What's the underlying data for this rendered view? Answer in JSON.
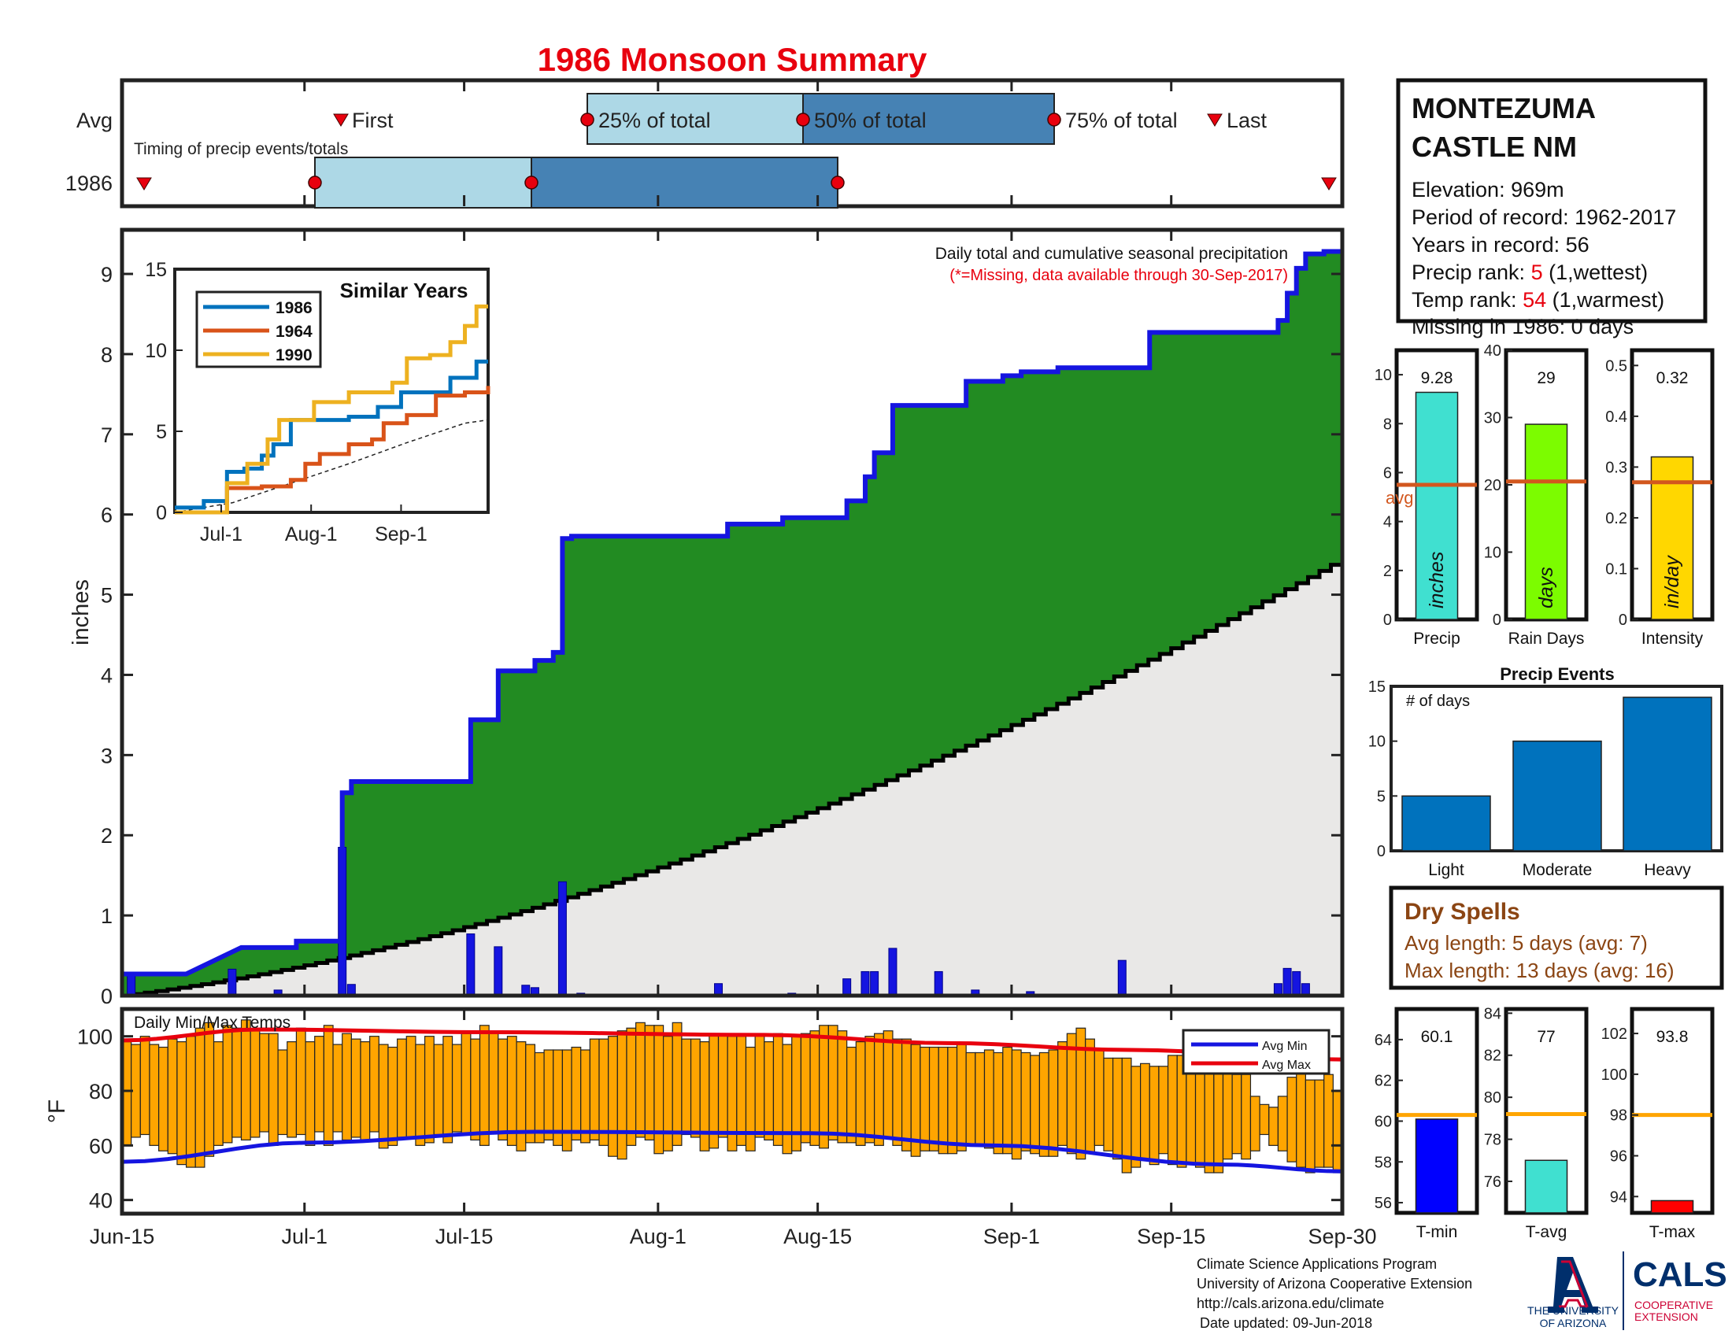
{
  "title": "1986 Monsoon Summary",
  "timing": {
    "avg_label": "Avg",
    "year_label": "1986",
    "caption": "Timing of precip events/totals",
    "first_label": "First",
    "p25_label": "25% of total",
    "p50_label": "50% of total",
    "p75_label": "75% of total",
    "last_label": "Last",
    "avg_dates": {
      "first": "Jul-7",
      "p25": "Jul-26",
      "p50": "Aug-13",
      "p75": "Sep-4",
      "last": "Sep-18"
    },
    "year_dates": {
      "first": "Jun-16",
      "p25": "Jul-2",
      "p50": "Jul-20",
      "p75": "Aug-16",
      "last": "Sep-30"
    }
  },
  "main": {
    "ylabel": "inches",
    "caption": "Daily total and cumulative seasonal precipitation",
    "missing_note": "(*=Missing, data available through 30-Sep-2017)",
    "x_ticks": [
      "Jun-15",
      "Jul-1",
      "Jul-15",
      "Aug-1",
      "Aug-15",
      "Sep-1",
      "Sep-15",
      "Sep-30"
    ],
    "y_ticks": [
      "0",
      "1",
      "2",
      "3",
      "4",
      "5",
      "6",
      "7",
      "8",
      "9"
    ]
  },
  "inset": {
    "title": "Similar Years",
    "legend": [
      "1986",
      "1964",
      "1990"
    ],
    "x_ticks": [
      "Jul-1",
      "Aug-1",
      "Sep-1"
    ],
    "y_ticks": [
      "0",
      "5",
      "10",
      "15"
    ]
  },
  "temps": {
    "caption": "Daily Min/Max Temps",
    "ylabel": "°F",
    "legend_min": "Avg Min",
    "legend_max": "Avg Max",
    "y_ticks": [
      "40",
      "60",
      "80",
      "100"
    ]
  },
  "station": {
    "name_line1": "MONTEZUMA",
    "name_line2": "CASTLE NM",
    "elevation": "Elevation: 969m",
    "period": "Period of record: 1962-2017",
    "years": "Years in record: 56",
    "precip_rank_label": "Precip rank: ",
    "precip_rank": "5",
    "precip_rank_suffix": " (1,wettest)",
    "temp_rank_label": "Temp rank: ",
    "temp_rank": "54",
    "temp_rank_suffix": " (1,warmest)",
    "missing": "Missing in 1986: 0 days"
  },
  "stats": {
    "precip": {
      "value_label": "9.28",
      "value": 9.28,
      "avg": 5.5,
      "unit": "inches",
      "label": "Precip",
      "avg_text": "avg",
      "ticks": [
        "0",
        "2",
        "4",
        "6",
        "8",
        "10"
      ],
      "max": 11
    },
    "raindays": {
      "value_label": "29",
      "value": 29,
      "avg": 20.5,
      "unit": "days",
      "label": "Rain Days",
      "ticks": [
        "0",
        "10",
        "20",
        "30",
        "40"
      ],
      "max": 40
    },
    "intensity": {
      "value_label": "0.32",
      "value": 0.32,
      "avg": 0.27,
      "unit": "in/day",
      "label": "Intensity",
      "ticks": [
        "0",
        "0.1",
        "0.2",
        "0.3",
        "0.4",
        "0.5"
      ],
      "max": 0.53
    }
  },
  "events": {
    "title": "Precip Events",
    "ylabel": "# of days",
    "categories": [
      "Light",
      "Moderate",
      "Heavy"
    ],
    "values": [
      5,
      10,
      14
    ],
    "y_ticks": [
      "0",
      "5",
      "10",
      "15"
    ]
  },
  "dry": {
    "title": "Dry Spells",
    "avg_line": "Avg length: 5 days (avg: 7)",
    "max_line": "Max length: 13 days (avg: 16)"
  },
  "tstats": {
    "tmin": {
      "value_label": "60.1",
      "value": 60.1,
      "avg": 60.3,
      "label": "T-min",
      "ticks": [
        "56",
        "58",
        "60",
        "62",
        "64"
      ],
      "min": 55.5,
      "max": 65.5
    },
    "tavg": {
      "value_label": "77",
      "value": 77,
      "avg": 79.2,
      "label": "T-avg",
      "ticks": [
        "76",
        "78",
        "80",
        "82",
        "84"
      ],
      "min": 74.5,
      "max": 84.2
    },
    "tmax": {
      "value_label": "93.8",
      "value": 93.8,
      "avg": 98,
      "label": "T-max",
      "ticks": [
        "94",
        "96",
        "98",
        "100",
        "102"
      ],
      "min": 93.2,
      "max": 103.2
    }
  },
  "footer": {
    "line1": "Climate Science Applications Program",
    "line2": "University of Arizona Cooperative Extension",
    "line3": "http://cals.arizona.edu/climate",
    "line4": "Date updated: 09-Jun-2018",
    "ua1": "THE UNIVERSITY",
    "ua2": "OF ARIZONA",
    "cals": "CALS",
    "cals1": "COOPERATIVE",
    "cals2": "EXTENSION"
  },
  "colors": {
    "green": "#228b22",
    "blue_line": "#1515e0",
    "light_blue": "#add8e6",
    "steel_blue": "#4682b4",
    "orange": "#ffa500",
    "red": "#e8000e",
    "avg_line": "#d2571e"
  },
  "chart_data": [
    {
      "type": "area",
      "title": "Daily total and cumulative seasonal precipitation",
      "ylabel": "inches",
      "ylim": [
        0,
        9.55
      ],
      "x_range": [
        "Jun-15",
        "Sep-30"
      ],
      "cumulative_1986": [
        [
          0,
          0.27
        ],
        [
          7,
          0.27
        ],
        [
          13,
          0.6
        ],
        [
          19,
          0.6
        ],
        [
          19,
          0.68
        ],
        [
          24,
          0.68
        ],
        [
          24,
          2.53
        ],
        [
          25,
          2.53
        ],
        [
          25,
          2.67
        ],
        [
          38,
          2.67
        ],
        [
          38,
          3.44
        ],
        [
          41,
          3.44
        ],
        [
          41,
          4.05
        ],
        [
          45,
          4.05
        ],
        [
          45,
          4.18
        ],
        [
          47,
          4.18
        ],
        [
          47,
          4.28
        ],
        [
          48,
          4.28
        ],
        [
          48,
          5.7
        ],
        [
          49,
          5.7
        ],
        [
          49,
          5.73
        ],
        [
          66,
          5.73
        ],
        [
          66,
          5.88
        ],
        [
          72,
          5.88
        ],
        [
          72,
          5.96
        ],
        [
          79,
          5.96
        ],
        [
          79,
          6.17
        ],
        [
          81,
          6.17
        ],
        [
          81,
          6.47
        ],
        [
          82,
          6.47
        ],
        [
          82,
          6.77
        ],
        [
          84,
          6.77
        ],
        [
          84,
          7.36
        ],
        [
          92,
          7.36
        ],
        [
          92,
          7.66
        ],
        [
          96,
          7.66
        ],
        [
          96,
          7.73
        ],
        [
          98,
          7.73
        ],
        [
          98,
          7.78
        ],
        [
          102,
          7.78
        ],
        [
          102,
          7.83
        ],
        [
          112,
          7.83
        ],
        [
          112,
          8.27
        ],
        [
          126,
          8.27
        ],
        [
          126,
          8.42
        ],
        [
          127,
          8.42
        ],
        [
          127,
          8.76
        ],
        [
          128,
          8.76
        ],
        [
          128,
          9.07
        ],
        [
          129,
          9.07
        ],
        [
          129,
          9.25
        ],
        [
          131,
          9.25
        ],
        [
          131,
          9.28
        ],
        [
          133,
          9.28
        ]
      ],
      "cumulative_average_end": 5.45,
      "daily_precip": [
        [
          1,
          0.27
        ],
        [
          12,
          0.33
        ],
        [
          17,
          0.07
        ],
        [
          24,
          1.85
        ],
        [
          25,
          0.14
        ],
        [
          38,
          0.77
        ],
        [
          41,
          0.61
        ],
        [
          44,
          0.13
        ],
        [
          45,
          0.1
        ],
        [
          48,
          1.42
        ],
        [
          50,
          0.03
        ],
        [
          65,
          0.15
        ],
        [
          73,
          0.03
        ],
        [
          79,
          0.21
        ],
        [
          81,
          0.3
        ],
        [
          82,
          0.3
        ],
        [
          84,
          0.59
        ],
        [
          89,
          0.3
        ],
        [
          93,
          0.07
        ],
        [
          97,
          0.02
        ],
        [
          99,
          0.05
        ],
        [
          109,
          0.44
        ],
        [
          126,
          0.15
        ],
        [
          127,
          0.34
        ],
        [
          128,
          0.3
        ],
        [
          129,
          0.15
        ]
      ]
    },
    {
      "type": "line",
      "title": "Similar Years",
      "x_ticks": [
        "Jul-1",
        "Aug-1",
        "Sep-1"
      ],
      "ylim": [
        0,
        15
      ],
      "series": [
        {
          "name": "1986",
          "values": [
            [
              0,
              0.3
            ],
            [
              10,
              0.7
            ],
            [
              18,
              2.5
            ],
            [
              24,
              2.7
            ],
            [
              30,
              3.5
            ],
            [
              34,
              4.2
            ],
            [
              40,
              5.7
            ],
            [
              60,
              5.9
            ],
            [
              70,
              6.5
            ],
            [
              78,
              7.4
            ],
            [
              95,
              8.3
            ],
            [
              104,
              9.3
            ],
            [
              108,
              9.3
            ]
          ]
        },
        {
          "name": "1964",
          "values": [
            [
              0,
              0
            ],
            [
              15,
              0
            ],
            [
              18,
              1.5
            ],
            [
              30,
              1.6
            ],
            [
              40,
              2.0
            ],
            [
              45,
              3.0
            ],
            [
              50,
              3.6
            ],
            [
              60,
              4.2
            ],
            [
              68,
              4.5
            ],
            [
              72,
              5.5
            ],
            [
              80,
              6.0
            ],
            [
              90,
              7.2
            ],
            [
              100,
              7.4
            ],
            [
              108,
              7.8
            ]
          ]
        },
        {
          "name": "1990",
          "values": [
            [
              0,
              0
            ],
            [
              15,
              0
            ],
            [
              18,
              1.8
            ],
            [
              25,
              3.0
            ],
            [
              32,
              4.5
            ],
            [
              36,
              5.7
            ],
            [
              48,
              6.8
            ],
            [
              60,
              7.4
            ],
            [
              75,
              8.0
            ],
            [
              80,
              9.5
            ],
            [
              88,
              9.7
            ],
            [
              95,
              10.5
            ],
            [
              100,
              11.5
            ],
            [
              104,
              12.7
            ],
            [
              108,
              12.7
            ]
          ]
        }
      ],
      "average": {
        "values": [
          [
            0,
            0
          ],
          [
            20,
            0.6
          ],
          [
            40,
            1.8
          ],
          [
            60,
            3.0
          ],
          [
            80,
            4.3
          ],
          [
            100,
            5.5
          ],
          [
            108,
            5.7
          ]
        ]
      }
    },
    {
      "type": "bar",
      "title": "Daily Min/Max Temps",
      "ylabel": "°F",
      "ylim": [
        35,
        110
      ],
      "tmax_daily": [
        98,
        97,
        100,
        97,
        96,
        99,
        98,
        100,
        103,
        105,
        98,
        104,
        103,
        106,
        102,
        101,
        101,
        95,
        98,
        103,
        98,
        100,
        104,
        97,
        101,
        99,
        98,
        100,
        97,
        96,
        99,
        100,
        97,
        100,
        97,
        100,
        97,
        101,
        99,
        104,
        101,
        99,
        100,
        98,
        97,
        94,
        95,
        95,
        95,
        96,
        95,
        99,
        99,
        100,
        102,
        103,
        105,
        104,
        104,
        100,
        105,
        99,
        99,
        98,
        101,
        101,
        100,
        100,
        96,
        101,
        98,
        101,
        97,
        100,
        101,
        102,
        104,
        104,
        102,
        96,
        98,
        100,
        101,
        102,
        99,
        99,
        97,
        96,
        96,
        96,
        96,
        97,
        94,
        94,
        95,
        94,
        96,
        95,
        94,
        93,
        94,
        95,
        98,
        101,
        103,
        99,
        95,
        92,
        92,
        92,
        89,
        90,
        89,
        89,
        93,
        93,
        88,
        89,
        90,
        88,
        89,
        86,
        86,
        78,
        75,
        74,
        78,
        85,
        88,
        84,
        84,
        86,
        80
      ],
      "tmin_daily": [
        60,
        63,
        64,
        60,
        58,
        57,
        53,
        52,
        52,
        56,
        60,
        61,
        63,
        62,
        63,
        65,
        60,
        64,
        63,
        64,
        60,
        65,
        60,
        65,
        62,
        63,
        62,
        65,
        59,
        60,
        63,
        63,
        60,
        61,
        64,
        61,
        65,
        64,
        62,
        60,
        65,
        62,
        60,
        58,
        61,
        61,
        62,
        60,
        58,
        62,
        61,
        62,
        60,
        56,
        55,
        60,
        63,
        62,
        57,
        58,
        60,
        64,
        63,
        58,
        59,
        63,
        58,
        60,
        58,
        63,
        62,
        60,
        57,
        58,
        61,
        60,
        59,
        62,
        61,
        61,
        60,
        61,
        60,
        63,
        60,
        58,
        56,
        58,
        58,
        57,
        57,
        58,
        60,
        60,
        59,
        57,
        57,
        55,
        58,
        57,
        56,
        56,
        60,
        57,
        55,
        57,
        60,
        58,
        55,
        50,
        52,
        55,
        53,
        57,
        53,
        52,
        53,
        52,
        50,
        50,
        55,
        57,
        55,
        58,
        64,
        60,
        58,
        54,
        52,
        50,
        52,
        52,
        50
      ],
      "avg_max": {
        "values": [
          [
            0,
            98.5
          ],
          [
            15,
            102.5
          ],
          [
            40,
            101.5
          ],
          [
            70,
            100.5
          ],
          [
            90,
            97.5
          ],
          [
            110,
            95
          ],
          [
            133,
            91.5
          ]
        ]
      },
      "avg_min": {
        "values": [
          [
            0,
            54
          ],
          [
            20,
            61
          ],
          [
            45,
            65
          ],
          [
            75,
            64.5
          ],
          [
            95,
            60
          ],
          [
            120,
            53
          ],
          [
            133,
            50.5
          ]
        ]
      }
    },
    {
      "type": "bar",
      "title": "Precip Events",
      "categories": [
        "Light",
        "Moderate",
        "Heavy"
      ],
      "values": [
        5,
        10,
        14
      ],
      "ylim": [
        0,
        15
      ]
    }
  ]
}
